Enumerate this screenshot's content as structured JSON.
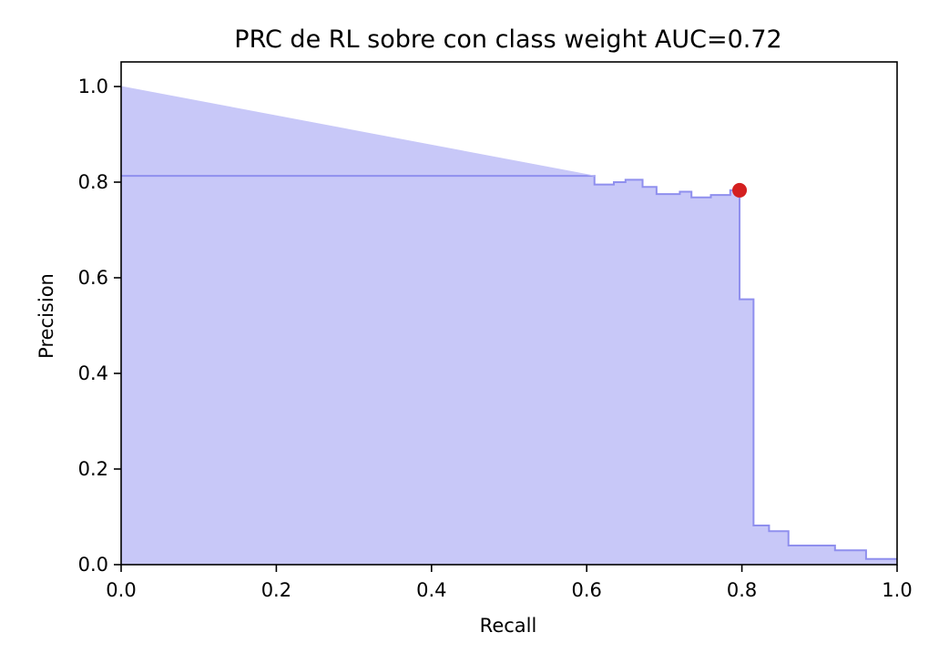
{
  "chart_data": {
    "type": "area",
    "title": "PRC de RL sobre con class weight AUC=0.72",
    "xlabel": "Recall",
    "ylabel": "Precision",
    "xlim": [
      0,
      1
    ],
    "ylim": [
      0,
      1
    ],
    "xticks": [
      "0.0",
      "0.2",
      "0.4",
      "0.6",
      "0.8",
      "1.0"
    ],
    "yticks": [
      "0.0",
      "0.2",
      "0.4",
      "0.6",
      "0.8",
      "1.0"
    ],
    "grid": false,
    "fill_color": "#c8c8f8",
    "line_color": "#8f8fee",
    "marker_color": "#d42020",
    "series": [
      {
        "step": true,
        "points": [
          [
            0.0,
            0.813
          ],
          [
            0.61,
            0.813
          ],
          [
            0.61,
            0.795
          ],
          [
            0.635,
            0.795
          ],
          [
            0.635,
            0.8
          ],
          [
            0.65,
            0.8
          ],
          [
            0.65,
            0.805
          ],
          [
            0.672,
            0.805
          ],
          [
            0.672,
            0.79
          ],
          [
            0.69,
            0.79
          ],
          [
            0.69,
            0.775
          ],
          [
            0.72,
            0.775
          ],
          [
            0.72,
            0.78
          ],
          [
            0.735,
            0.78
          ],
          [
            0.735,
            0.768
          ],
          [
            0.76,
            0.768
          ],
          [
            0.76,
            0.773
          ],
          [
            0.785,
            0.773
          ],
          [
            0.785,
            0.783
          ],
          [
            0.797,
            0.783
          ],
          [
            0.797,
            0.555
          ],
          [
            0.815,
            0.555
          ],
          [
            0.815,
            0.082
          ],
          [
            0.835,
            0.082
          ],
          [
            0.835,
            0.07
          ],
          [
            0.86,
            0.07
          ],
          [
            0.86,
            0.04
          ],
          [
            0.92,
            0.04
          ],
          [
            0.92,
            0.03
          ],
          [
            0.96,
            0.03
          ],
          [
            0.96,
            0.012
          ],
          [
            1.0,
            0.012
          ]
        ]
      },
      {
        "step": false,
        "points": [
          [
            0.0,
            1.0
          ],
          [
            0.61,
            0.813
          ]
        ]
      }
    ],
    "marker": {
      "x": 0.797,
      "y": 0.783
    }
  }
}
